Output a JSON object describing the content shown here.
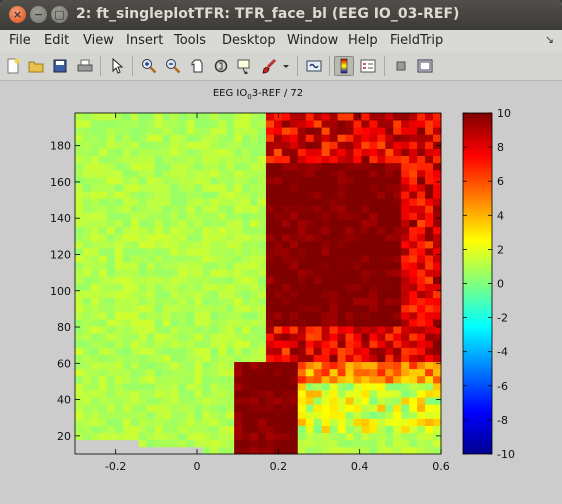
{
  "window": {
    "title": "2: ft_singleplotTFR: TFR_face_bl (EEG IO_03-REF)"
  },
  "menu": {
    "items": [
      "File",
      "Edit",
      "View",
      "Insert",
      "Tools",
      "Desktop",
      "Window",
      "Help",
      "FieldTrip"
    ]
  },
  "toolbar": {
    "buttons": [
      "new-figure-icon",
      "open-file-icon",
      "save-icon",
      "print-icon",
      "pointer-icon",
      "zoom-in-icon",
      "zoom-out-icon",
      "pan-icon",
      "rotate-3d-icon",
      "data-cursor-icon",
      "brush-icon",
      "link-plot-icon",
      "colorbar-toggle-icon",
      "legend-toggle-icon",
      "hide-plot-tools-icon",
      "show-plot-tools-icon"
    ],
    "active": "colorbar-toggle-icon"
  },
  "chart_data": {
    "type": "heatmap",
    "title": {
      "prefix": "EEG IO",
      "subscript": "0",
      "suffix": "3-REF / 72"
    },
    "xlabel": "",
    "ylabel": "",
    "xlim": [
      -0.3,
      0.6
    ],
    "ylim": [
      10,
      198
    ],
    "xticks": [
      -0.2,
      0,
      0.2,
      0.4,
      0.6
    ],
    "xtick_labels": [
      "-0.2",
      "0",
      "0.2",
      "0.4",
      "0.6"
    ],
    "yticks": [
      20,
      40,
      60,
      80,
      100,
      120,
      140,
      160,
      180
    ],
    "yticks_labels": [
      "20",
      "40",
      "60",
      "80",
      "100",
      "120",
      "140",
      "160",
      "180"
    ],
    "colorbar": {
      "clim": [
        -10,
        10
      ],
      "ticks": [
        10,
        8,
        6,
        4,
        2,
        0,
        -2,
        -4,
        -6,
        -8,
        -10
      ],
      "tick_labels": [
        "10",
        "8",
        "6",
        "4",
        "2",
        "0",
        "-2",
        "-4",
        "-6",
        "-8",
        "-10"
      ],
      "colormap": "jet"
    },
    "time_range": [
      -0.3,
      0.6
    ],
    "freq_range": [
      10,
      198
    ],
    "regions": [
      {
        "t": [
          -0.3,
          0.6
        ],
        "f": [
          10,
          198
        ],
        "value": 1.0
      },
      {
        "t": [
          0.1,
          0.25
        ],
        "f": [
          10,
          60
        ],
        "value": 10
      },
      {
        "t": [
          0.16,
          0.6
        ],
        "f": [
          60,
          198
        ],
        "value": 8
      },
      {
        "t": [
          0.17,
          0.5
        ],
        "f": [
          80,
          170
        ],
        "value": 10
      },
      {
        "t": [
          0.2,
          0.6
        ],
        "f": [
          50,
          80
        ],
        "value": 5
      },
      {
        "t": [
          0.25,
          0.6
        ],
        "f": [
          20,
          50
        ],
        "value": 2
      }
    ]
  }
}
